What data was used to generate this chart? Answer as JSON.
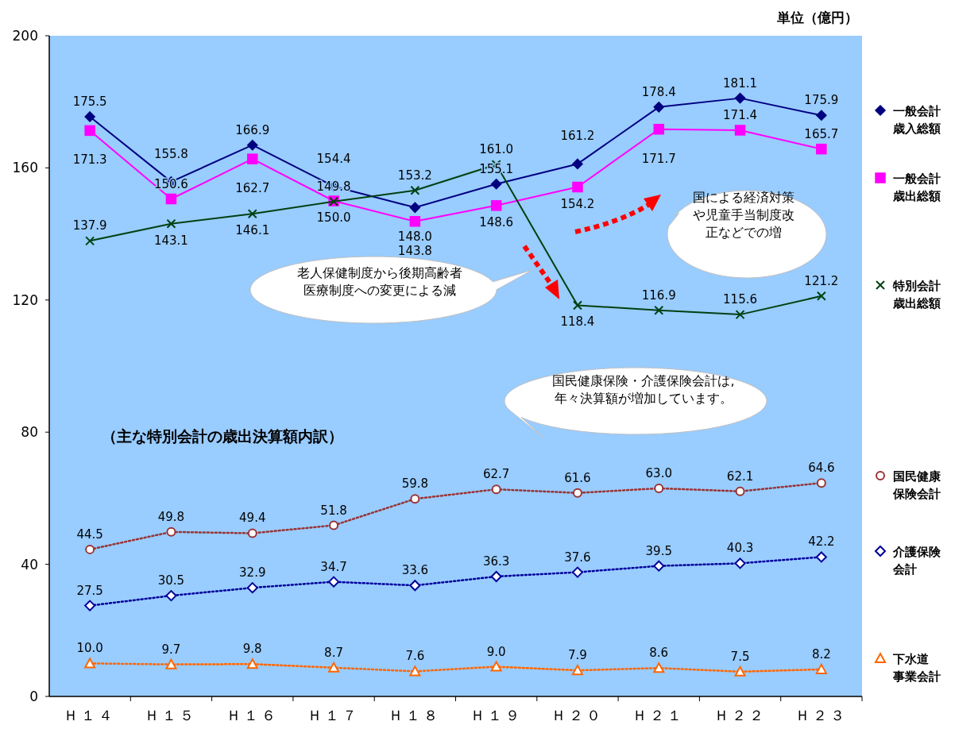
{
  "chart_data": {
    "type": "line",
    "categories": [
      "Ｈ１４",
      "Ｈ１５",
      "Ｈ１６",
      "Ｈ１７",
      "Ｈ１８",
      "Ｈ１９",
      "Ｈ２０",
      "Ｈ２１",
      "Ｈ２２",
      "Ｈ２３"
    ],
    "ylim": [
      0,
      200
    ],
    "yticks": [
      0,
      40,
      80,
      120,
      160,
      200
    ],
    "grid": false,
    "legend": "right",
    "series": [
      {
        "name": "一般会計歳入総額",
        "color": "#000080",
        "marker": "diamond",
        "line_style": "solid",
        "values": [
          175.5,
          155.8,
          166.9,
          154.4,
          148.0,
          155.1,
          161.2,
          178.4,
          181.1,
          175.9
        ],
        "value_labels": [
          "175.5",
          "155.8",
          "166.9",
          "154.4",
          "148.0",
          "155.1",
          "161.2",
          "178.4",
          "181.1",
          "175.9"
        ]
      },
      {
        "name": "一般会計歳出総額",
        "color": "#ff00ff",
        "marker": "square",
        "line_style": "solid",
        "values": [
          171.3,
          150.6,
          162.7,
          150.0,
          143.8,
          148.6,
          154.2,
          171.7,
          171.4,
          165.7
        ],
        "value_labels": [
          "171.3",
          "150.6",
          "162.7",
          "150.0",
          "143.8",
          "148.6",
          "154.2",
          "171.7",
          "171.4",
          "165.7"
        ]
      },
      {
        "name": "特別会計歳出総額",
        "color": "#004010",
        "marker": "cross",
        "line_style": "solid",
        "values": [
          137.9,
          143.1,
          146.1,
          149.8,
          153.2,
          161.0,
          118.4,
          116.9,
          115.6,
          121.2
        ],
        "value_labels": [
          "137.9",
          "143.1",
          "146.1",
          "149.8",
          "153.2",
          "161.0",
          "118.4",
          "116.9",
          "115.6",
          "121.2"
        ]
      },
      {
        "name": "国民健康保険会計",
        "color": "#993333",
        "marker": "circle",
        "line_style": "dotted",
        "values": [
          44.5,
          49.8,
          49.4,
          51.8,
          59.8,
          62.7,
          61.6,
          63.0,
          62.1,
          64.6
        ],
        "value_labels": [
          "44.5",
          "49.8",
          "49.4",
          "51.8",
          "59.8",
          "62.7",
          "61.6",
          "63.0",
          "62.1",
          "64.6"
        ]
      },
      {
        "name": "介護保険会計",
        "color": "#000099",
        "marker": "diamond",
        "line_style": "dotted",
        "values": [
          27.5,
          30.5,
          32.9,
          34.7,
          33.6,
          36.3,
          37.6,
          39.5,
          40.3,
          42.2
        ],
        "value_labels": [
          "27.5",
          "30.5",
          "32.9",
          "34.7",
          "33.6",
          "36.3",
          "37.6",
          "39.5",
          "40.3",
          "42.2"
        ]
      },
      {
        "name": "下水道事業会計",
        "color": "#ff6600",
        "marker": "triangle",
        "line_style": "dotted",
        "values": [
          10.0,
          9.7,
          9.8,
          8.7,
          7.6,
          9.0,
          7.9,
          8.6,
          7.5,
          8.2
        ],
        "value_labels": [
          "10.0",
          "9.7",
          "9.8",
          "8.7",
          "7.6",
          "9.0",
          "7.9",
          "8.6",
          "7.5",
          "8.2"
        ]
      }
    ],
    "annotations": [
      "単位（億円）",
      "（主な特別会計の歳出決算額内訳）",
      "老人保健制度から後期高齢者医療制度への変更による減",
      "国による経済対策や児童手当制度改正などでの増",
      "国民健康保険・介護保険会計は,年々決算額が増加しています。"
    ]
  }
}
